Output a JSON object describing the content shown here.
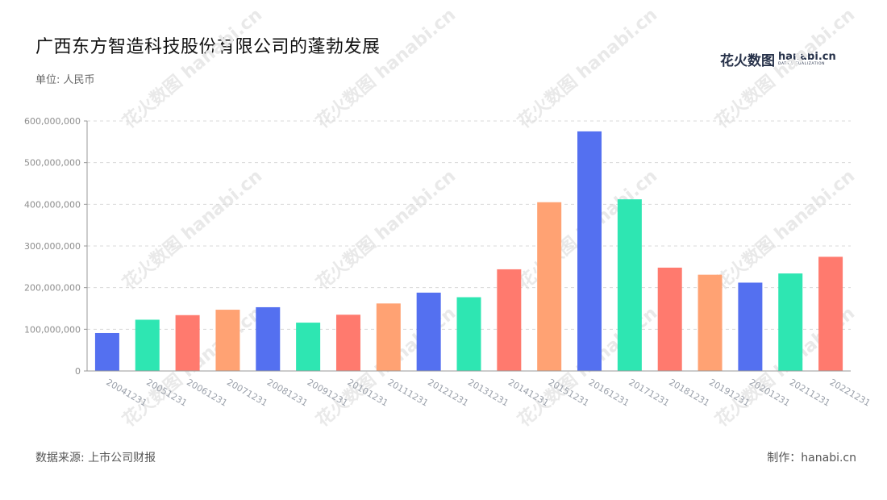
{
  "header": {
    "title": "广西东方智造科技股份有限公司的蓬勃发展",
    "unit": "单位: 人民币"
  },
  "logo": {
    "cn": "花火数图",
    "en": "hanabi.cn",
    "sub": "DATA VISUALIZATION",
    "watermark_text": "花火数图 hanabi.cn"
  },
  "footer": {
    "source": "数据来源: 上市公司财报",
    "credit": "制作：hanabi.cn"
  },
  "colors": {
    "palette": [
      "#5470f0",
      "#2ee6b2",
      "#ff7a6e",
      "#ffa273"
    ],
    "grid": "#d9d9d9",
    "axis": "#999999"
  },
  "chart_data": {
    "type": "bar",
    "title": "广西东方智造科技股份有限公司的蓬勃发展",
    "ylabel": "单位: 人民币",
    "ylim": [
      0,
      600000000
    ],
    "yticks": [
      0,
      100000000,
      200000000,
      300000000,
      400000000,
      500000000,
      600000000
    ],
    "ytick_labels": [
      "0",
      "100,000,000",
      "200,000,000",
      "300,000,000",
      "400,000,000",
      "500,000,000",
      "600,000,000"
    ],
    "grid": true,
    "categories": [
      "20041231",
      "20051231",
      "20061231",
      "20071231",
      "20081231",
      "20091231",
      "20101231",
      "20111231",
      "20121231",
      "20131231",
      "20141231",
      "20151231",
      "20161231",
      "20171231",
      "20181231",
      "20191231",
      "20201231",
      "20211231",
      "20221231"
    ],
    "values": [
      91000000,
      123000000,
      134000000,
      147000000,
      153000000,
      116000000,
      135000000,
      162000000,
      188000000,
      177000000,
      244000000,
      405000000,
      575000000,
      412000000,
      248000000,
      231000000,
      212000000,
      234000000,
      274000000
    ]
  }
}
